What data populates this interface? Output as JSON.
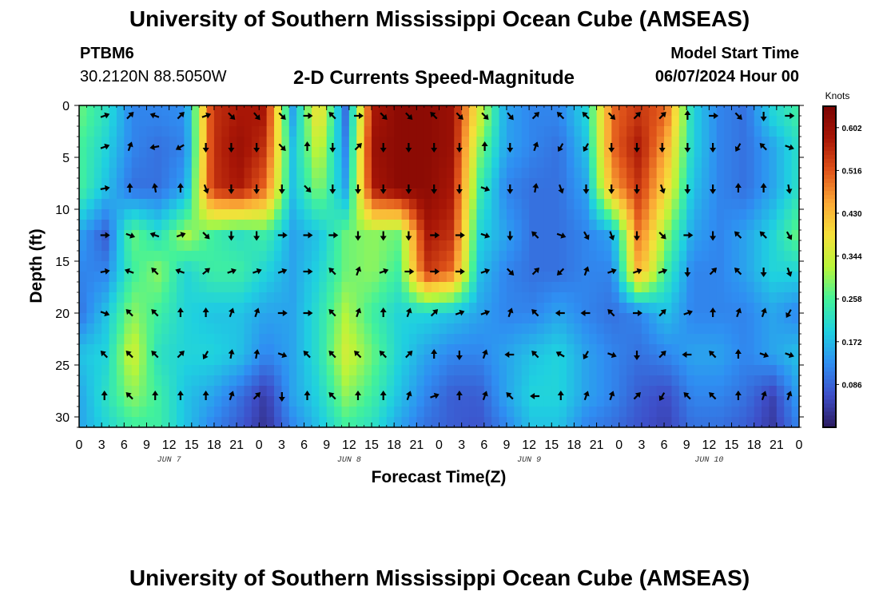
{
  "header": {
    "title": "University of Southern Mississippi Ocean Cube (AMSEAS)",
    "station_id": "PTBM6",
    "station_coords": "30.2120N  88.5050W",
    "plot_title": "2-D Currents Speed-Magnitude",
    "model_start_label": "Model Start Time",
    "model_start_value": "06/07/2024 Hour 00"
  },
  "footer": {
    "title": "University of Southern Mississippi Ocean Cube (AMSEAS)"
  },
  "colors": {
    "scale": [
      "#2b1a5e",
      "#3e4ec8",
      "#2f8ef2",
      "#1fd0e0",
      "#43f29a",
      "#b8f53a",
      "#f5e03a",
      "#fba836",
      "#e0541a",
      "#a81606",
      "#7a0403"
    ]
  },
  "chart_data": {
    "type": "heatmap",
    "title": "2-D Currents Speed-Magnitude",
    "xlabel": "Forecast Time(Z)",
    "ylabel": "Depth (ft)",
    "x_ticks": [
      "0",
      "3",
      "6",
      "9",
      "12",
      "15",
      "18",
      "21",
      "0",
      "3",
      "6",
      "9",
      "12",
      "15",
      "18",
      "21",
      "0",
      "3",
      "6",
      "9",
      "12",
      "15",
      "18",
      "21",
      "0",
      "3",
      "6",
      "9",
      "12",
      "15",
      "18",
      "21",
      "0"
    ],
    "day_labels": [
      {
        "label": "JUN 7",
        "hour": 12
      },
      {
        "label": "JUN 8",
        "hour": 36
      },
      {
        "label": "JUN 9",
        "hour": 60
      },
      {
        "label": "JUN 10",
        "hour": 84
      }
    ],
    "x_range_hours": [
      0,
      96
    ],
    "y_ticks": [
      0,
      5,
      10,
      15,
      20,
      25,
      30
    ],
    "y_range": [
      0,
      31
    ],
    "colorbar": {
      "unit": "Knots",
      "range": [
        0,
        0.645
      ],
      "tick_values": [
        0.086,
        0.172,
        0.258,
        0.344,
        0.43,
        0.516,
        0.602
      ],
      "tick_labels": [
        "0.086",
        "0.172",
        "0.258",
        "0.344",
        "0.430",
        "0.516",
        "0.602"
      ]
    },
    "depth_levels_ft": [
      1,
      4,
      8,
      12.5,
      16,
      20,
      24,
      28,
      31
    ],
    "speed_knots": [
      [
        0.28,
        0.22,
        0.12,
        0.12,
        0.13,
        0.55,
        0.58,
        0.58,
        0.15,
        0.4,
        0.1,
        0.58,
        0.62,
        0.62,
        0.6,
        0.35,
        0.15,
        0.12,
        0.12,
        0.2,
        0.5,
        0.55,
        0.5,
        0.2,
        0.12,
        0.1,
        0.2,
        0.25
      ],
      [
        0.26,
        0.2,
        0.12,
        0.1,
        0.12,
        0.55,
        0.6,
        0.55,
        0.18,
        0.35,
        0.12,
        0.6,
        0.62,
        0.62,
        0.6,
        0.3,
        0.15,
        0.12,
        0.1,
        0.18,
        0.5,
        0.58,
        0.45,
        0.2,
        0.12,
        0.1,
        0.15,
        0.22
      ],
      [
        0.26,
        0.18,
        0.1,
        0.1,
        0.15,
        0.55,
        0.58,
        0.5,
        0.18,
        0.3,
        0.15,
        0.58,
        0.62,
        0.62,
        0.58,
        0.25,
        0.12,
        0.1,
        0.1,
        0.15,
        0.45,
        0.55,
        0.4,
        0.18,
        0.12,
        0.1,
        0.15,
        0.22
      ],
      [
        0.15,
        0.08,
        0.28,
        0.22,
        0.32,
        0.25,
        0.22,
        0.25,
        0.15,
        0.18,
        0.28,
        0.3,
        0.28,
        0.58,
        0.55,
        0.2,
        0.15,
        0.1,
        0.1,
        0.12,
        0.15,
        0.5,
        0.3,
        0.15,
        0.12,
        0.15,
        0.2,
        0.28
      ],
      [
        0.12,
        0.12,
        0.25,
        0.3,
        0.2,
        0.25,
        0.25,
        0.2,
        0.15,
        0.2,
        0.28,
        0.3,
        0.25,
        0.55,
        0.5,
        0.18,
        0.12,
        0.1,
        0.1,
        0.12,
        0.12,
        0.45,
        0.25,
        0.12,
        0.12,
        0.15,
        0.2,
        0.2
      ],
      [
        0.1,
        0.18,
        0.3,
        0.25,
        0.2,
        0.18,
        0.18,
        0.15,
        0.15,
        0.22,
        0.32,
        0.25,
        0.2,
        0.2,
        0.18,
        0.15,
        0.12,
        0.12,
        0.15,
        0.12,
        0.1,
        0.12,
        0.18,
        0.12,
        0.12,
        0.12,
        0.15,
        0.12
      ],
      [
        0.18,
        0.2,
        0.35,
        0.22,
        0.2,
        0.2,
        0.18,
        0.12,
        0.15,
        0.22,
        0.35,
        0.28,
        0.2,
        0.15,
        0.12,
        0.12,
        0.15,
        0.18,
        0.2,
        0.15,
        0.12,
        0.1,
        0.12,
        0.15,
        0.15,
        0.12,
        0.15,
        0.18
      ],
      [
        0.15,
        0.22,
        0.3,
        0.25,
        0.18,
        0.15,
        0.1,
        0.04,
        0.15,
        0.2,
        0.3,
        0.25,
        0.18,
        0.12,
        0.08,
        0.08,
        0.15,
        0.2,
        0.2,
        0.15,
        0.12,
        0.08,
        0.06,
        0.12,
        0.12,
        0.1,
        0.05,
        0.15
      ],
      [
        0.15,
        0.2,
        0.25,
        0.25,
        0.18,
        0.12,
        0.08,
        0.03,
        0.12,
        0.18,
        0.25,
        0.22,
        0.15,
        0.1,
        0.08,
        0.07,
        0.12,
        0.18,
        0.18,
        0.12,
        0.1,
        0.07,
        0.05,
        0.1,
        0.1,
        0.08,
        0.04,
        0.12
      ]
    ],
    "arrow_directions_deg": [
      [
        160,
        135,
        20,
        135,
        160,
        225,
        230,
        225,
        180,
        45,
        180,
        225,
        225,
        45,
        225,
        225,
        230,
        135,
        45,
        45,
        225,
        135,
        135,
        90,
        180,
        225,
        270,
        180
      ],
      [
        160,
        110,
        350,
        330,
        270,
        270,
        270,
        225,
        90,
        270,
        135,
        270,
        270,
        270,
        270,
        90,
        270,
        110,
        300,
        300,
        270,
        270,
        270,
        270,
        270,
        300,
        45,
        200
      ],
      [
        170,
        90,
        80,
        90,
        250,
        270,
        270,
        270,
        225,
        270,
        270,
        270,
        270,
        270,
        270,
        200,
        270,
        100,
        250,
        270,
        270,
        270,
        250,
        270,
        270,
        90,
        90,
        260
      ],
      [
        180,
        200,
        20,
        160,
        225,
        270,
        270,
        180,
        180,
        180,
        270,
        270,
        270,
        180,
        180,
        200,
        270,
        45,
        200,
        240,
        250,
        270,
        225,
        180,
        270,
        45,
        45,
        240
      ],
      [
        170,
        20,
        45,
        20,
        140,
        160,
        160,
        160,
        180,
        45,
        110,
        160,
        180,
        180,
        180,
        160,
        225,
        135,
        315,
        110,
        160,
        160,
        160,
        270,
        135,
        45,
        270,
        250
      ],
      [
        200,
        45,
        45,
        90,
        90,
        110,
        110,
        180,
        180,
        45,
        110,
        90,
        110,
        135,
        160,
        160,
        110,
        45,
        0,
        0,
        45,
        180,
        135,
        160,
        90,
        110,
        110,
        300
      ],
      [
        45,
        45,
        45,
        135,
        300,
        100,
        100,
        200,
        45,
        45,
        45,
        45,
        135,
        90,
        270,
        110,
        0,
        45,
        30,
        300,
        200,
        270,
        135,
        0,
        45,
        90,
        200,
        200
      ],
      [
        90,
        45,
        90,
        90,
        90,
        110,
        135,
        270,
        90,
        45,
        90,
        90,
        110,
        160,
        90,
        110,
        45,
        0,
        90,
        110,
        110,
        135,
        300,
        45,
        45,
        90,
        110,
        110
      ]
    ]
  }
}
